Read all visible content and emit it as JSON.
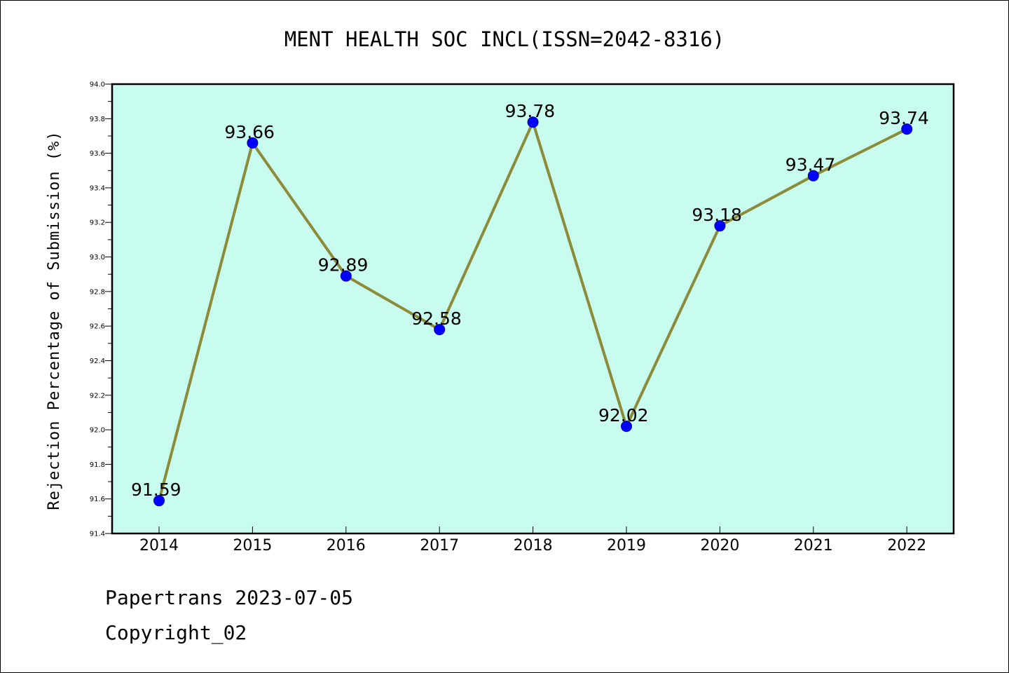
{
  "chart_data": {
    "type": "line",
    "title": "MENT HEALTH SOC INCL(ISSN=2042-8316)",
    "ylabel": "Rejection Percentage of Submission (%)",
    "xlabel": "",
    "x": [
      "2014",
      "2015",
      "2016",
      "2017",
      "2018",
      "2019",
      "2020",
      "2021",
      "2022"
    ],
    "series": [
      {
        "values": [
          91.59,
          93.66,
          92.89,
          92.58,
          93.78,
          92.02,
          93.18,
          93.47,
          93.74
        ]
      }
    ],
    "data_labels": [
      "91.59",
      "93.66",
      "92.89",
      "92.58",
      "93.78",
      "92.02",
      "93.18",
      "93.47",
      "93.74"
    ],
    "ylim": [
      91.4,
      94.0
    ],
    "yticks": [
      "91.4",
      "91.6",
      "91.8",
      "92.0",
      "92.2",
      "92.4",
      "92.6",
      "92.8",
      "93.0",
      "93.2",
      "93.4",
      "93.6",
      "93.8",
      "94.0"
    ],
    "grid": false,
    "colors": {
      "plot_background": "#c8fcee",
      "line": "#8b8b3a",
      "marker": "#0000ff"
    }
  },
  "footer": {
    "line1": "Papertrans 2023-07-05",
    "line2": "Copyright_02"
  }
}
